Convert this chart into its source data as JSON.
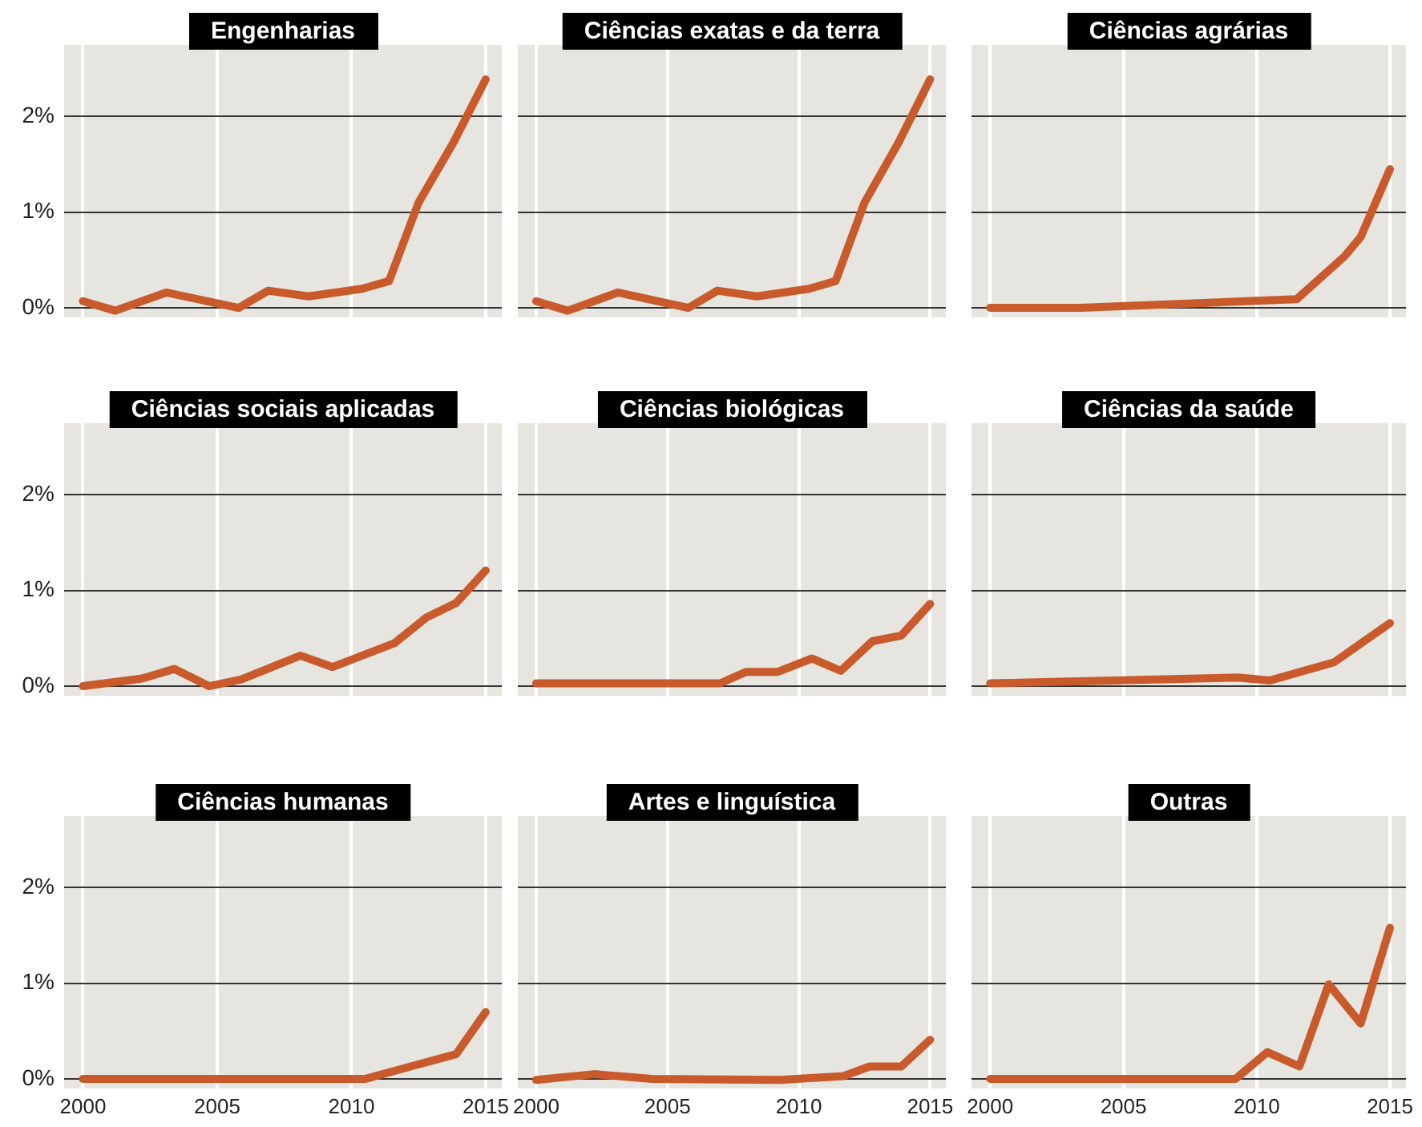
{
  "chart_data": [
    {
      "type": "line",
      "title": "Engenharias",
      "x": [
        2000,
        2001.2,
        2003.1,
        2005.8,
        2006.9,
        2008.4,
        2010.4,
        2011.4,
        2012.5,
        2013.8,
        2015
      ],
      "values": [
        0.07,
        -0.03,
        0.16,
        0,
        0.18,
        0.12,
        0.2,
        0.28,
        1.1,
        1.73,
        2.39
      ],
      "color": "#c85a2c",
      "xlim": [
        1999.3,
        2015.6
      ],
      "xticks": [
        2000,
        2005,
        2010,
        2015
      ],
      "ylim": [
        -0.1,
        2.75
      ],
      "yticks": [
        {
          "value": 0,
          "label": "0%"
        },
        {
          "value": 1,
          "label": "1%"
        },
        {
          "value": 2,
          "label": "2%"
        }
      ],
      "grid": true,
      "tick_labels": "y"
    },
    {
      "type": "line",
      "title": "Ciências exatas e da terra",
      "x": [
        2000,
        2001.2,
        2003.1,
        2005.8,
        2006.9,
        2008.4,
        2010.4,
        2011.4,
        2012.5,
        2013.8,
        2015
      ],
      "values": [
        0.07,
        -0.03,
        0.16,
        0,
        0.18,
        0.12,
        0.2,
        0.28,
        1.1,
        1.73,
        2.39
      ],
      "color": "#c85a2c",
      "xlim": [
        1999.3,
        2015.6
      ],
      "xticks": [
        2000,
        2005,
        2010,
        2015
      ],
      "ylim": [
        -0.1,
        2.75
      ],
      "yticks": [
        0,
        1,
        2
      ],
      "grid": true,
      "tick_labels": false
    },
    {
      "type": "line",
      "title": "Ciências agrárias",
      "x": [
        2000,
        2003.4,
        2011.5,
        2013.3,
        2013.9,
        2015
      ],
      "values": [
        0,
        0,
        0.09,
        0.54,
        0.74,
        1.45
      ],
      "color": "#c85a2c",
      "xlim": [
        1999.3,
        2015.6
      ],
      "xticks": [
        2000,
        2005,
        2010,
        2015
      ],
      "ylim": [
        -0.1,
        2.75
      ],
      "yticks": [
        0,
        1,
        2
      ],
      "grid": true,
      "tick_labels": false
    },
    {
      "type": "line",
      "title": "Ciências sociais aplicadas",
      "x": [
        2000,
        2002.2,
        2003.4,
        2004.7,
        2005.9,
        2008.1,
        2009.3,
        2011.6,
        2012.8,
        2013.9,
        2015
      ],
      "values": [
        0,
        0.08,
        0.18,
        0,
        0.07,
        0.32,
        0.2,
        0.45,
        0.72,
        0.87,
        1.21
      ],
      "color": "#c85a2c",
      "xlim": [
        1999.3,
        2015.6
      ],
      "xticks": [
        2000,
        2005,
        2010,
        2015
      ],
      "ylim": [
        -0.1,
        2.75
      ],
      "yticks": [
        {
          "value": 0,
          "label": "0%"
        },
        {
          "value": 1,
          "label": "1%"
        },
        {
          "value": 2,
          "label": "2%"
        }
      ],
      "grid": true,
      "tick_labels": "y"
    },
    {
      "type": "line",
      "title": "Ciências biológicas",
      "x": [
        2000,
        2007,
        2008,
        2009.2,
        2010.5,
        2011.6,
        2012.8,
        2013.9,
        2015
      ],
      "values": [
        0.03,
        0.03,
        0.15,
        0.15,
        0.29,
        0.16,
        0.47,
        0.53,
        0.86
      ],
      "color": "#c85a2c",
      "xlim": [
        1999.3,
        2015.6
      ],
      "xticks": [
        2000,
        2005,
        2010,
        2015
      ],
      "ylim": [
        -0.1,
        2.75
      ],
      "yticks": [
        0,
        1,
        2
      ],
      "grid": true,
      "tick_labels": false
    },
    {
      "type": "line",
      "title": "Ciências da saúde",
      "x": [
        2000,
        2009.3,
        2010.5,
        2012.9,
        2015
      ],
      "values": [
        0.03,
        0.09,
        0.06,
        0.25,
        0.66
      ],
      "color": "#c85a2c",
      "xlim": [
        1999.3,
        2015.6
      ],
      "xticks": [
        2000,
        2005,
        2010,
        2015
      ],
      "ylim": [
        -0.1,
        2.75
      ],
      "yticks": [
        0,
        1,
        2
      ],
      "grid": true,
      "tick_labels": false
    },
    {
      "type": "line",
      "title": "Ciências humanas",
      "x": [
        2000,
        2010.5,
        2013.9,
        2015
      ],
      "values": [
        0,
        0,
        0.26,
        0.7
      ],
      "color": "#c85a2c",
      "xlim": [
        1999.3,
        2015.6
      ],
      "xticks": [
        2000,
        2005,
        2010,
        2015
      ],
      "ylim": [
        -0.1,
        2.75
      ],
      "yticks": [
        {
          "value": 0,
          "label": "0%"
        },
        {
          "value": 1,
          "label": "1%"
        },
        {
          "value": 2,
          "label": "2%"
        }
      ],
      "grid": true
    },
    {
      "type": "line",
      "title": "Artes e linguística",
      "x": [
        2000,
        2002.2,
        2004.4,
        2009.3,
        2011.7,
        2012.7,
        2013.9,
        2015
      ],
      "values": [
        -0.01,
        0.05,
        0,
        -0.01,
        0.03,
        0.13,
        0.13,
        0.41
      ],
      "color": "#c85a2c",
      "xlim": [
        1999.3,
        2015.6
      ],
      "xticks": [
        2000,
        2005,
        2010,
        2015
      ],
      "ylim": [
        -0.1,
        2.75
      ],
      "yticks": [
        0,
        1,
        2
      ],
      "grid": true,
      "tick_labels": "x"
    },
    {
      "type": "line",
      "title": "Outras",
      "x": [
        2000,
        2009.2,
        2010.4,
        2011.6,
        2012.7,
        2013.9,
        2015
      ],
      "values": [
        0,
        0,
        0.28,
        0.13,
        0.99,
        0.58,
        1.58
      ],
      "color": "#c85a2c",
      "xlim": [
        1999.3,
        2015.6
      ],
      "xticks": [
        2000,
        2005,
        2010,
        2015
      ],
      "ylim": [
        -0.1,
        2.75
      ],
      "yticks": [
        0,
        1,
        2
      ],
      "grid": true,
      "tick_labels": "x"
    }
  ]
}
